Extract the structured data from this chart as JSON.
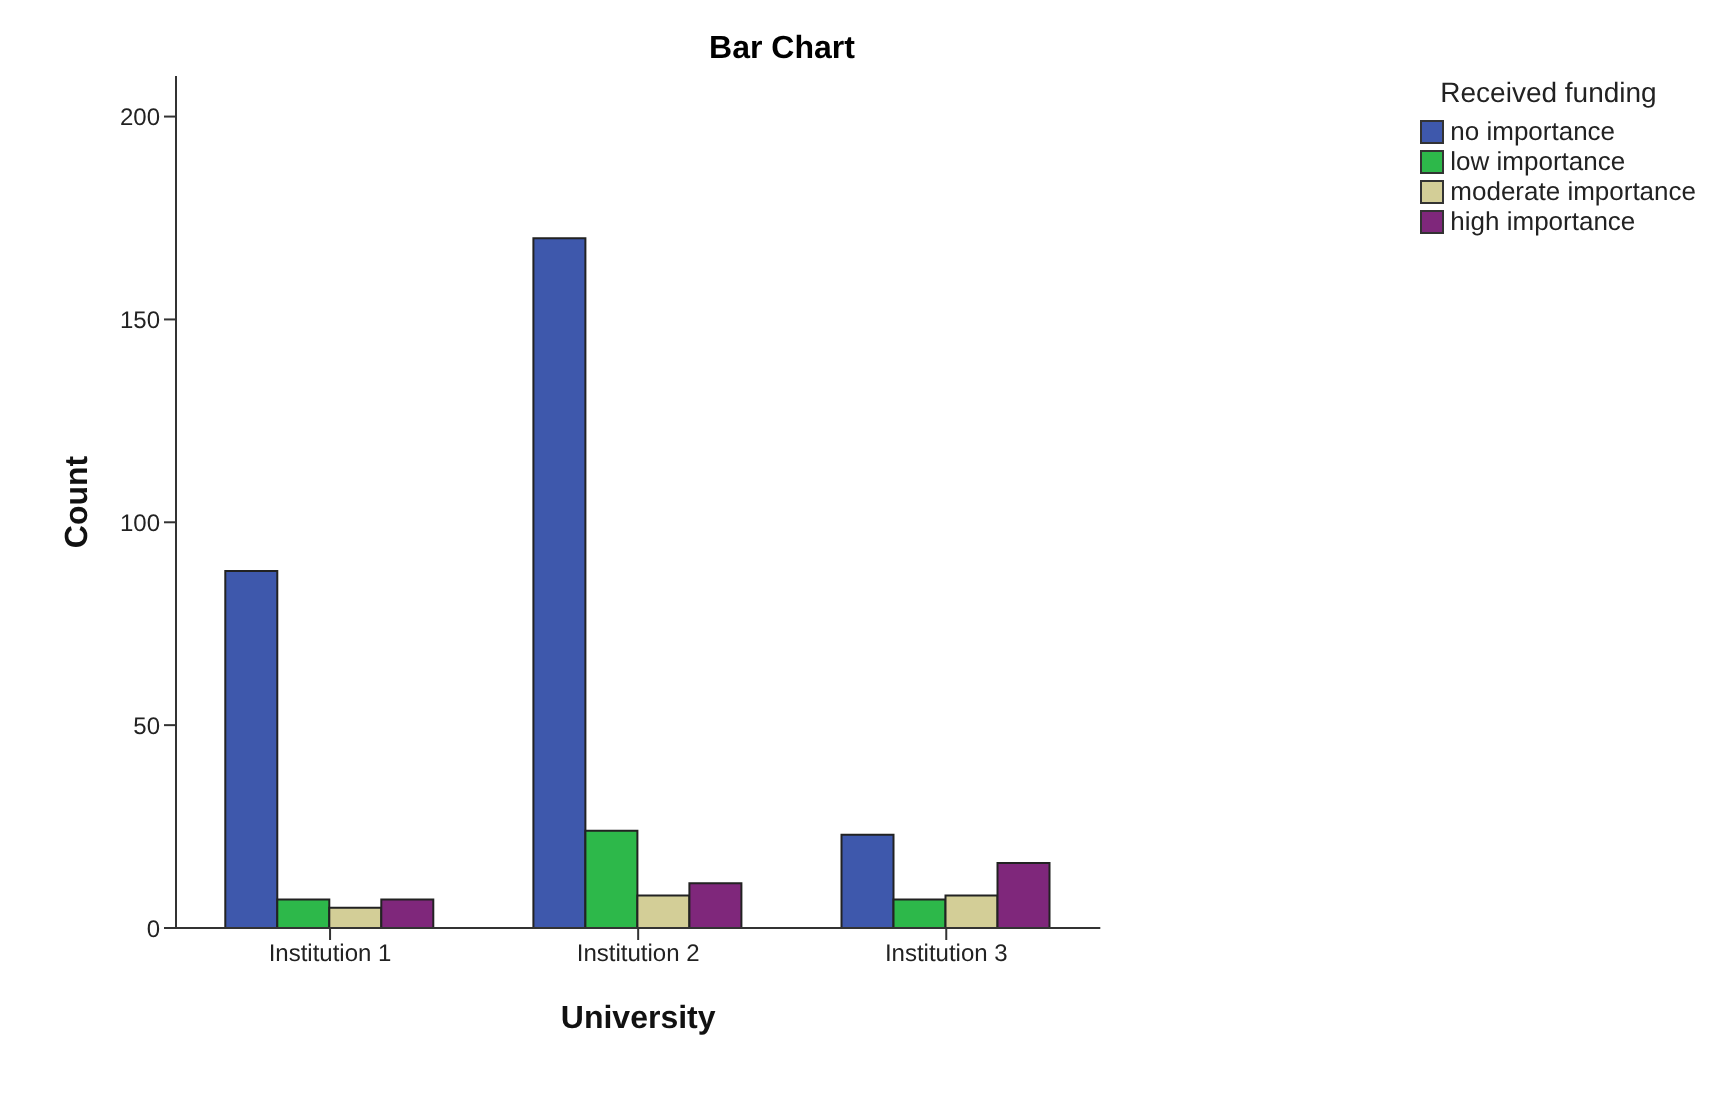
{
  "chart_data": {
    "type": "bar",
    "title": "Bar Chart",
    "xlabel": "University",
    "ylabel": "Count",
    "legend_title": "Received funding",
    "categories": [
      "Institution 1",
      "Institution 2",
      "Institution 3"
    ],
    "series": [
      {
        "name": "no importance",
        "color": "#3e58ac",
        "values": [
          88,
          170,
          23
        ]
      },
      {
        "name": "low importance",
        "color": "#2db84a",
        "values": [
          7,
          24,
          7
        ]
      },
      {
        "name": "moderate importance",
        "color": "#d3ce97",
        "values": [
          5,
          8,
          8
        ]
      },
      {
        "name": "high importance",
        "color": "#7f277b",
        "values": [
          7,
          11,
          16
        ]
      }
    ],
    "ylim": [
      0,
      210
    ],
    "yticks": [
      0,
      50,
      100,
      150,
      200
    ],
    "grid": false,
    "legend": "top right"
  }
}
